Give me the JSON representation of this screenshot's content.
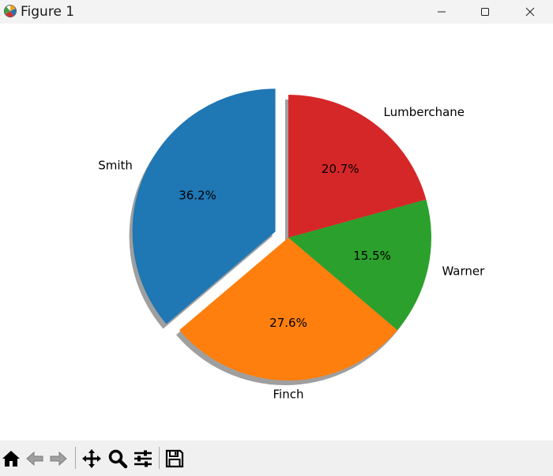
{
  "window": {
    "title": "Figure 1"
  },
  "toolbar": {
    "buttons": [
      "home-icon",
      "back-icon",
      "forward-icon",
      "pan-icon",
      "zoom-icon",
      "configure-subplots-icon",
      "save-icon"
    ]
  },
  "chart_data": {
    "type": "pie",
    "categories": [
      "Smith",
      "Finch",
      "Warner",
      "Lumberchane"
    ],
    "values": [
      36.2,
      27.6,
      15.5,
      20.7
    ],
    "percent_labels": [
      "36.2%",
      "27.6%",
      "15.5%",
      "20.7%"
    ],
    "colors": [
      "#1f77b4",
      "#ff7f0e",
      "#2ca02c",
      "#d62728"
    ],
    "explode": [
      0.1,
      0,
      0,
      0
    ],
    "shadow": true,
    "start_angle": 90,
    "direction": "counterclockwise",
    "title": ""
  }
}
